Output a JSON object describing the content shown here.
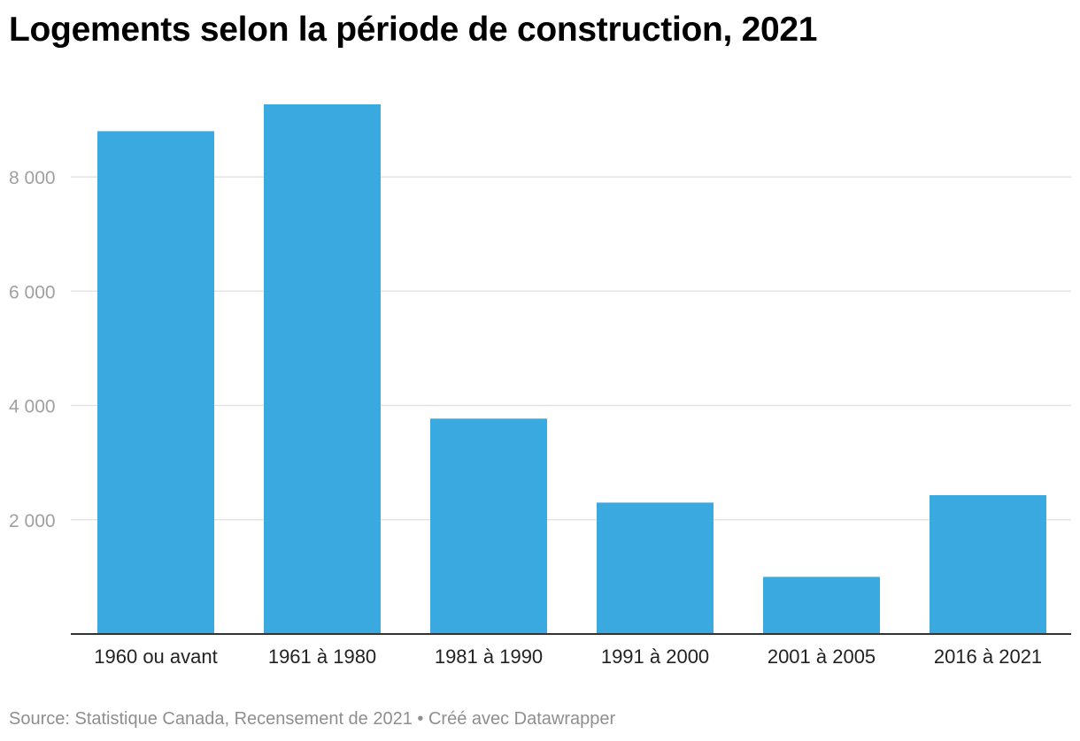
{
  "page": {
    "title": "Logements selon la période de construction, 2021",
    "source": "Source: Statistique Canada, Recensement de 2021 • Créé avec Datawrapper"
  },
  "chart_data": {
    "type": "bar",
    "title": "Logements selon la période de construction, 2021",
    "xlabel": "",
    "ylabel": "",
    "categories": [
      "1960 ou avant",
      "1961 à 1980",
      "1981 à 1990",
      "1991 à 2000",
      "2001 à 2005",
      "2016 à 2021"
    ],
    "values": [
      8800,
      9270,
      3770,
      2300,
      1000,
      2430
    ],
    "ylim": [
      0,
      9270
    ],
    "yticks": [
      2000,
      4000,
      6000,
      8000
    ],
    "ytick_labels": [
      "2 000",
      "4 000",
      "6 000",
      "8 000"
    ],
    "grid": true,
    "legend": "none",
    "colors": {
      "bar": "#39a9e0",
      "grid": "#e3e3e3",
      "axis": "#333333"
    }
  }
}
